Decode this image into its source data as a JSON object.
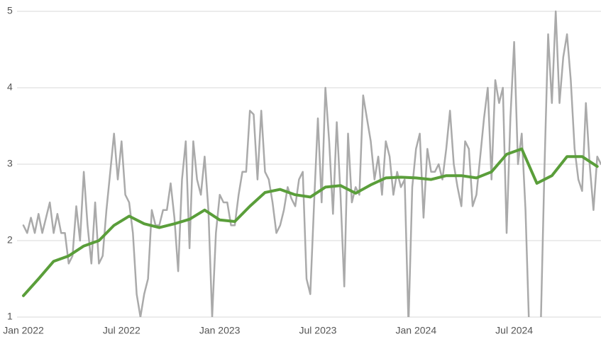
{
  "chart_data": {
    "type": "line",
    "xlim": [
      0,
      153
    ],
    "xticks": [
      {
        "value": 0,
        "label": "Jan 2022"
      },
      {
        "value": 26,
        "label": "Jul 2022"
      },
      {
        "value": 52,
        "label": "Jan 2023"
      },
      {
        "value": 78,
        "label": "Jul 2023"
      },
      {
        "value": 104,
        "label": "Jan 2024"
      },
      {
        "value": 130,
        "label": "Jul 2024"
      }
    ],
    "ylim": [
      1,
      5
    ],
    "yticks": [
      1,
      2,
      3,
      4,
      5
    ],
    "grid": true,
    "series": [
      {
        "color": "#aaaaaa",
        "x": [
          0,
          1,
          2,
          3,
          4,
          5,
          6,
          7,
          8,
          9,
          10,
          11,
          12,
          13,
          14,
          15,
          16,
          17,
          18,
          19,
          20,
          21,
          22,
          23,
          24,
          25,
          26,
          27,
          28,
          29,
          30,
          31,
          32,
          33,
          34,
          35,
          36,
          37,
          38,
          39,
          40,
          41,
          42,
          43,
          44,
          45,
          46,
          47,
          48,
          49,
          50,
          51,
          52,
          53,
          54,
          55,
          56,
          57,
          58,
          59,
          60,
          61,
          62,
          63,
          64,
          65,
          66,
          67,
          68,
          69,
          70,
          71,
          72,
          73,
          74,
          75,
          76,
          77,
          78,
          79,
          80,
          81,
          82,
          83,
          84,
          85,
          86,
          87,
          88,
          89,
          90,
          91,
          92,
          93,
          94,
          95,
          96,
          97,
          98,
          99,
          100,
          101,
          102,
          103,
          104,
          105,
          106,
          107,
          108,
          109,
          110,
          111,
          112,
          113,
          114,
          115,
          116,
          117,
          118,
          119,
          120,
          121,
          122,
          123,
          124,
          125,
          126,
          127,
          128,
          129,
          130,
          131,
          132,
          133,
          134,
          135,
          136,
          137,
          138,
          139,
          140,
          141,
          142,
          143,
          144,
          145,
          146,
          147,
          148,
          149,
          150,
          151,
          152,
          153
        ],
        "values": [
          2.2,
          2.1,
          2.3,
          2.1,
          2.35,
          2.1,
          2.3,
          2.5,
          2.1,
          2.35,
          2.1,
          2.1,
          1.7,
          1.8,
          2.45,
          2.0,
          2.9,
          2.2,
          1.7,
          2.5,
          1.7,
          1.8,
          2.4,
          2.9,
          3.4,
          2.8,
          3.3,
          2.6,
          2.5,
          2.1,
          1.3,
          1.0,
          1.3,
          1.5,
          2.4,
          2.2,
          2.2,
          2.4,
          2.4,
          2.75,
          2.3,
          1.6,
          2.8,
          3.3,
          1.9,
          3.3,
          2.8,
          2.6,
          3.1,
          2.4,
          1.0,
          2.1,
          2.6,
          2.5,
          2.5,
          2.2,
          2.2,
          2.6,
          2.9,
          2.9,
          3.7,
          3.65,
          2.8,
          3.7,
          2.9,
          2.8,
          2.5,
          2.1,
          2.2,
          2.4,
          2.7,
          2.55,
          2.45,
          2.8,
          2.9,
          1.5,
          1.3,
          2.5,
          3.6,
          2.5,
          4.0,
          3.3,
          2.35,
          3.55,
          2.6,
          1.4,
          3.4,
          2.5,
          2.7,
          2.6,
          3.9,
          3.6,
          3.3,
          2.8,
          3.1,
          2.6,
          3.3,
          3.1,
          2.6,
          2.9,
          2.7,
          2.8,
          0.9,
          2.7,
          3.2,
          3.4,
          2.3,
          3.2,
          2.9,
          2.9,
          3.0,
          2.8,
          3.2,
          3.7,
          3.0,
          2.7,
          2.45,
          3.3,
          3.2,
          2.45,
          2.6,
          3.1,
          3.6,
          4.0,
          2.8,
          4.1,
          3.8,
          4.0,
          2.1,
          3.6,
          4.6,
          3.0,
          3.4,
          2.4,
          0.8,
          0.8,
          0.8,
          0.8,
          2.9,
          4.7,
          3.8,
          5.0,
          3.8,
          4.4,
          4.7,
          4.1,
          3.2,
          2.8,
          2.65,
          3.8,
          3.0,
          2.4,
          3.1,
          3.0
        ]
      },
      {
        "color": "#5a9e3a",
        "x": [
          0,
          4,
          8,
          12,
          16,
          20,
          24,
          28,
          32,
          36,
          40,
          44,
          48,
          52,
          56,
          60,
          64,
          68,
          72,
          76,
          80,
          84,
          88,
          92,
          96,
          100,
          104,
          108,
          112,
          116,
          120,
          124,
          128,
          132,
          136,
          140,
          144,
          148,
          152
        ],
        "values": [
          1.28,
          1.5,
          1.73,
          1.8,
          1.93,
          2.0,
          2.2,
          2.32,
          2.22,
          2.17,
          2.22,
          2.28,
          2.4,
          2.27,
          2.25,
          2.45,
          2.63,
          2.67,
          2.6,
          2.57,
          2.7,
          2.72,
          2.62,
          2.73,
          2.82,
          2.83,
          2.82,
          2.8,
          2.85,
          2.85,
          2.82,
          2.9,
          3.13,
          3.2,
          2.75,
          2.85,
          3.1,
          3.1,
          2.97
        ]
      }
    ]
  }
}
